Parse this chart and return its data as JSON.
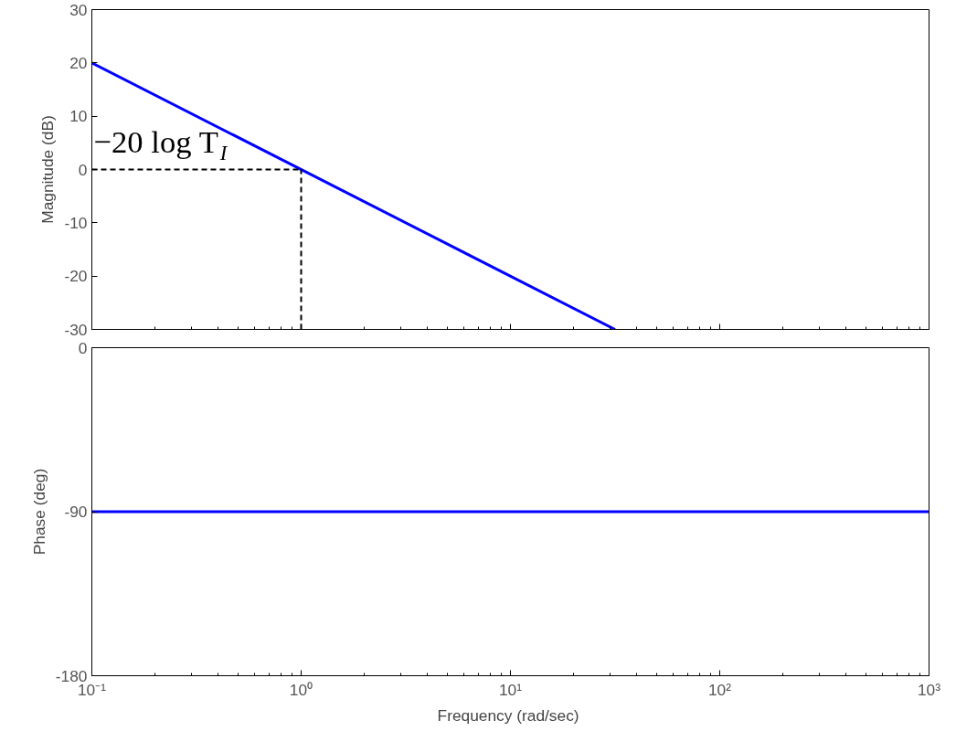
{
  "chart_data": [
    {
      "type": "line",
      "ylabel": "Magnitude (dB)",
      "log": "x",
      "xlim": [
        0.1,
        1000
      ],
      "ylim": [
        -30,
        30
      ],
      "xticks": [
        0.1,
        1,
        10,
        100,
        1000
      ],
      "yticks": [
        -30,
        -20,
        -10,
        0,
        10,
        20,
        30
      ],
      "tick_labels": "y",
      "grid": false,
      "series": [
        {
          "color": "#0000ff",
          "x": [
            0.1,
            31.6
          ],
          "values": [
            20,
            -30
          ]
        },
        {
          "color": "#000000",
          "line_style": "dashed",
          "x": [
            0.1,
            1
          ],
          "values": [
            0,
            0
          ]
        },
        {
          "color": "#000000",
          "line_style": "dashed",
          "x": [
            1,
            1
          ],
          "values": [
            -30,
            0
          ]
        }
      ],
      "annotations": [
        {
          "text": "−20 log T$_{I}$",
          "x": 0.1,
          "y": 0
        }
      ]
    },
    {
      "type": "line",
      "xlabel": "Frequency  (rad/sec)",
      "ylabel": "Phase (deg)",
      "log": "x",
      "xlim": [
        0.1,
        1000
      ],
      "ylim": [
        -180,
        0
      ],
      "grid": false,
      "xticks": [
        {
          "value": 0.1,
          "label": "10⁻¹"
        },
        {
          "value": 1,
          "label": "10⁰"
        },
        {
          "value": 10,
          "label": "10¹"
        },
        {
          "value": 100,
          "label": "10²"
        },
        {
          "value": 1000,
          "label": "10³"
        }
      ],
      "yticks": [
        -180,
        -90,
        0
      ],
      "series": [
        {
          "color": "#0000ff",
          "x": [
            0.1,
            1000
          ],
          "values": [
            -90,
            -90
          ]
        }
      ]
    }
  ]
}
